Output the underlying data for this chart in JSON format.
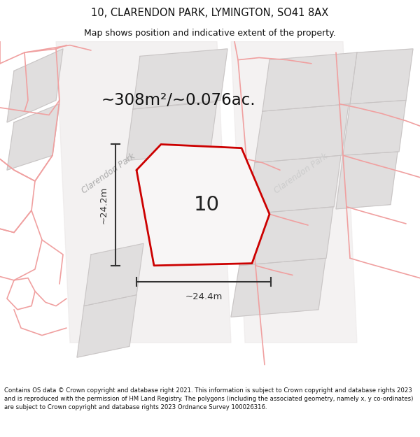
{
  "title_line1": "10, CLARENDON PARK, LYMINGTON, SO41 8AX",
  "title_line2": "Map shows position and indicative extent of the property.",
  "area_text": "~308m²/~0.076ac.",
  "label_number": "10",
  "dim_vertical": "~24.2m",
  "dim_horizontal": "~24.4m",
  "road_label1": "Clarendon Park",
  "road_label2": "Clarendon Park",
  "footer_text": "Contains OS data © Crown copyright and database right 2021. This information is subject to Crown copyright and database rights 2023 and is reproduced with the permission of HM Land Registry. The polygons (including the associated geometry, namely x, y co-ordinates) are subject to Crown copyright and database rights 2023 Ordnance Survey 100026316.",
  "bg_color": "#ffffff",
  "plot_fill": "#f0eeee",
  "plot_edge": "#cc0000",
  "neighbour_fill": "#e0dede",
  "grey_edge": "#c8c4c4",
  "pink_line": "#f0a0a0",
  "dim_line": "#333333",
  "text_color": "#111111",
  "road_text_color": "#aaaaaa"
}
